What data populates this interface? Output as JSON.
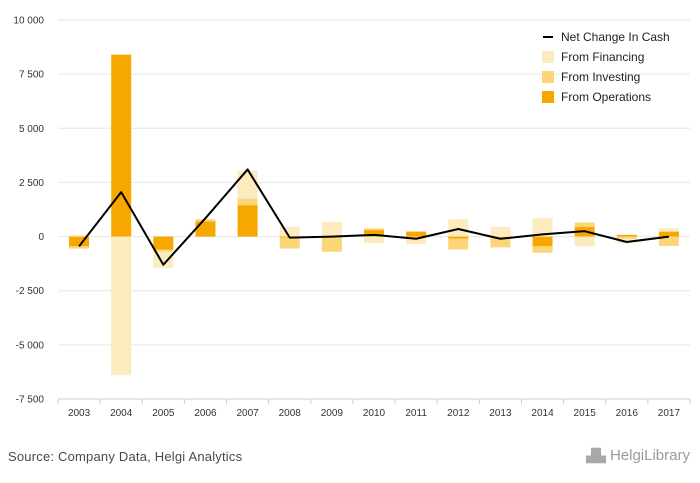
{
  "chart_data": {
    "type": "bar",
    "categories": [
      "2003",
      "2004",
      "2005",
      "2006",
      "2007",
      "2008",
      "2009",
      "2010",
      "2011",
      "2012",
      "2013",
      "2014",
      "2015",
      "2016",
      "2017"
    ],
    "series": [
      {
        "name": "From Operations",
        "kind": "bar",
        "color": "#F7A800",
        "values": [
          -450,
          8400,
          -600,
          700,
          1450,
          -50,
          0,
          300,
          230,
          -100,
          0,
          -450,
          450,
          80,
          230
        ]
      },
      {
        "name": "From Investing",
        "kind": "bar",
        "color": "#FBD576",
        "values": [
          -100,
          0,
          -100,
          100,
          300,
          -500,
          -700,
          80,
          -50,
          -500,
          -500,
          -300,
          200,
          -100,
          -430
        ]
      },
      {
        "name": "From Financing",
        "kind": "bar",
        "color": "#FDEBC0",
        "values": [
          80,
          -6400,
          -750,
          0,
          1300,
          450,
          680,
          -300,
          -300,
          800,
          450,
          850,
          -450,
          -200,
          150
        ]
      },
      {
        "name": "Net Change In Cash",
        "kind": "line",
        "color": "#000000",
        "values": [
          -450,
          2050,
          -1300,
          850,
          3100,
          -50,
          0,
          80,
          -100,
          350,
          -100,
          100,
          250,
          -250,
          0
        ]
      }
    ],
    "ylim": [
      -7500,
      10000
    ],
    "yticks": [
      10000,
      7500,
      5000,
      2500,
      0,
      -2500,
      -5000,
      -7500
    ],
    "ytick_labels": [
      "10 000",
      "7 500",
      "5 000",
      "2 500",
      "0",
      "-2 500",
      "-5 000",
      "-7 500"
    ],
    "legend": [
      "Net Change In Cash",
      "From Financing",
      "From Investing",
      "From Operations"
    ],
    "legend_position": "top-right",
    "grid": true
  },
  "footer": {
    "source": "Source: Company Data, Helgi Analytics",
    "logo": "HelgiLibrary"
  }
}
